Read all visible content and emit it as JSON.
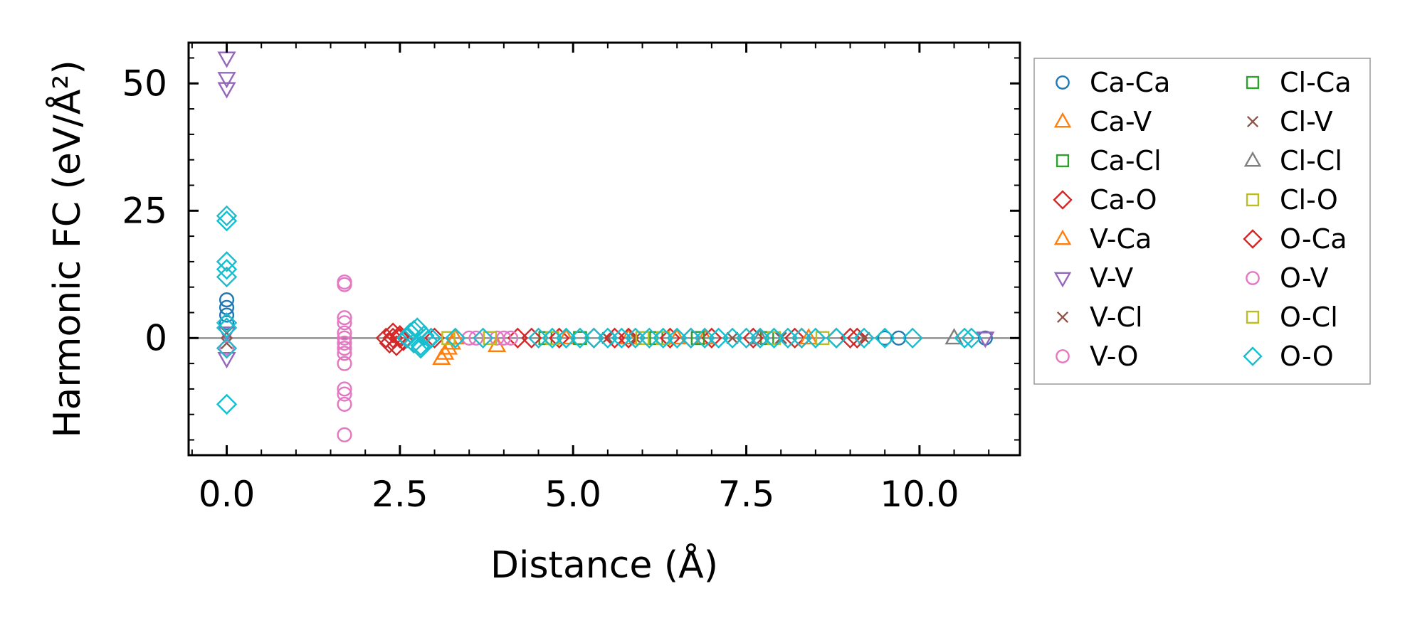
{
  "chart_data": {
    "type": "scatter",
    "xlabel": "Distance (Å)",
    "ylabel": "Harmonic FC (eV/Å²)",
    "xlim": [
      -0.55,
      11.45
    ],
    "ylim": [
      -23,
      58
    ],
    "xticks": [
      0.0,
      2.5,
      5.0,
      7.5,
      10.0
    ],
    "xtick_labels": [
      "0.0",
      "2.5",
      "5.0",
      "7.5",
      "10.0"
    ],
    "yticks": [
      0,
      25,
      50
    ],
    "ytick_labels": [
      "0",
      "25",
      "50"
    ],
    "zero_line": true,
    "legend_position": "outside-right",
    "legend_columns": 2,
    "series": [
      {
        "name": "Ca-Ca",
        "marker": "circle",
        "color": "#1f77b4",
        "x": [
          0,
          0,
          0,
          0,
          9.5,
          9.7,
          10.95
        ],
        "y": [
          7.5,
          6,
          4.5,
          3,
          0,
          0,
          0
        ]
      },
      {
        "name": "Ca-V",
        "marker": "triangle-up",
        "color": "#ff7f0e",
        "x": [
          3.1,
          3.15,
          3.2,
          3.25,
          3.9,
          5.8,
          6.9
        ],
        "y": [
          -4,
          -3,
          -2,
          -1,
          -1.5,
          0,
          0
        ]
      },
      {
        "name": "Ca-Cl",
        "marker": "square",
        "color": "#2ca02c",
        "x": [
          4.6,
          6.2,
          7.8
        ],
        "y": [
          0,
          0,
          0
        ]
      },
      {
        "name": "Ca-O",
        "marker": "diamond",
        "color": "#d62728",
        "x": [
          2.3,
          2.35,
          2.4,
          2.45,
          2.5,
          2.55,
          2.6,
          3.0,
          4.2,
          4.8,
          5.3,
          5.8,
          6.4,
          7.0,
          7.6,
          8.2,
          8.8,
          9.1
        ],
        "y": [
          0,
          -1,
          1,
          -1.5,
          0.5,
          -0.5,
          0,
          0,
          0,
          0,
          0,
          0,
          0,
          0,
          0,
          0,
          0,
          0
        ]
      },
      {
        "name": "V-Ca",
        "marker": "triangle-up",
        "color": "#ff7f0e",
        "x": [
          3.3,
          4.9,
          6.5,
          8.4
        ],
        "y": [
          0,
          0,
          0,
          0
        ]
      },
      {
        "name": "V-V",
        "marker": "triangle-down",
        "color": "#9467bd",
        "x": [
          0,
          0,
          0,
          0,
          0,
          10.95
        ],
        "y": [
          55,
          51,
          49,
          -4,
          1,
          0
        ]
      },
      {
        "name": "V-Cl",
        "marker": "x",
        "color": "#8c564b",
        "x": [
          0,
          0,
          5.5,
          7.3,
          9.2
        ],
        "y": [
          -1,
          1,
          0,
          0,
          0
        ]
      },
      {
        "name": "V-O",
        "marker": "circle",
        "color": "#e377c2",
        "x": [
          0,
          1.7,
          1.7,
          1.7,
          1.7,
          1.7,
          1.7,
          1.7,
          1.7,
          1.7,
          1.7,
          1.7,
          1.7,
          1.7,
          1.7,
          3.6,
          3.9
        ],
        "y": [
          -2,
          11,
          10.5,
          4,
          3,
          1,
          -1,
          -2,
          -3,
          -5,
          -10,
          -11,
          -13,
          -19,
          0,
          0,
          0
        ]
      },
      {
        "name": "Cl-Ca",
        "marker": "square",
        "color": "#2ca02c",
        "x": [
          5.1,
          6.8
        ],
        "y": [
          0,
          0
        ]
      },
      {
        "name": "Cl-V",
        "marker": "x",
        "color": "#8c564b",
        "x": [
          5.9,
          8.0
        ],
        "y": [
          0,
          0
        ]
      },
      {
        "name": "Cl-Cl",
        "marker": "triangle-up",
        "color": "#7f7f7f",
        "x": [
          7.7,
          10.5
        ],
        "y": [
          0,
          0
        ]
      },
      {
        "name": "Cl-O",
        "marker": "square",
        "color": "#bcbd22",
        "x": [
          3.2,
          3.8,
          6.0,
          8.6
        ],
        "y": [
          0,
          0,
          0,
          0
        ]
      },
      {
        "name": "O-Ca",
        "marker": "diamond",
        "color": "#d62728",
        "x": [
          2.4,
          2.5,
          4.4,
          5.6,
          6.7,
          8.3,
          9.0
        ],
        "y": [
          0,
          0,
          0,
          0,
          0,
          0,
          0
        ]
      },
      {
        "name": "O-V",
        "marker": "circle",
        "color": "#e377c2",
        "x": [
          3.5,
          4.0,
          4.1
        ],
        "y": [
          0,
          0,
          0
        ]
      },
      {
        "name": "O-Cl",
        "marker": "square",
        "color": "#bcbd22",
        "x": [
          4.7,
          6.3,
          7.9
        ],
        "y": [
          0,
          0,
          0
        ]
      },
      {
        "name": "O-O",
        "marker": "diamond",
        "color": "#17becf",
        "x": [
          0,
          0,
          0,
          0,
          0,
          0,
          0,
          0,
          0,
          2.6,
          2.65,
          2.7,
          2.75,
          2.8,
          2.85,
          2.9,
          2.95,
          2.7,
          2.8,
          3.3,
          3.7,
          4.5,
          4.7,
          4.9,
          5.1,
          5.3,
          5.5,
          5.7,
          5.9,
          6.1,
          6.3,
          6.5,
          6.7,
          6.9,
          7.1,
          7.3,
          7.5,
          7.7,
          7.9,
          8.1,
          8.3,
          8.5,
          8.8,
          9.2,
          9.5,
          9.9,
          10.65,
          10.75
        ],
        "y": [
          24,
          23,
          15,
          13.5,
          12,
          3,
          2,
          -2,
          -13,
          0,
          1,
          -1,
          2,
          -2,
          0.5,
          -0.5,
          0,
          1.5,
          -1.5,
          0,
          0,
          0,
          0,
          0,
          0,
          0,
          0,
          0,
          0,
          0,
          0,
          0,
          0,
          0,
          0,
          0,
          0,
          0,
          0,
          0,
          0,
          0,
          0,
          0,
          0,
          0,
          0,
          0
        ]
      }
    ]
  }
}
